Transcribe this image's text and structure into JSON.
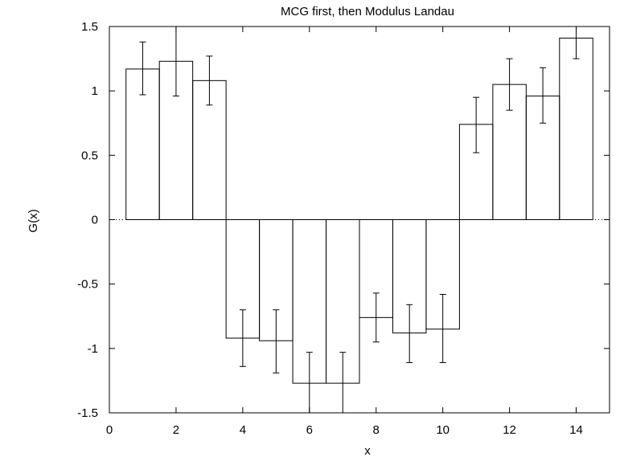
{
  "chart_data": {
    "type": "bar",
    "title": "MCG first, then Modulus Landau",
    "xlabel": "x",
    "ylabel": "G(x)",
    "xlim": [
      0,
      15
    ],
    "ylim": [
      -1.5,
      1.5
    ],
    "xticks": [
      0,
      2,
      4,
      6,
      8,
      10,
      12,
      14
    ],
    "yticks": [
      -1.5,
      -1,
      -0.5,
      0,
      0.5,
      1,
      1.5
    ],
    "xtick_labels": [
      "0",
      "2",
      "4",
      "6",
      "8",
      "10",
      "12",
      "14"
    ],
    "ytick_labels": [
      "-1.5",
      "-1",
      "-0.5",
      "0",
      "0.5",
      "1",
      "1.5"
    ],
    "bar_width": 1,
    "zero_line": "dotted",
    "x": [
      1,
      2,
      3,
      4,
      5,
      6,
      7,
      8,
      9,
      10,
      11,
      12,
      13,
      14
    ],
    "values": [
      1.17,
      1.23,
      1.08,
      -0.92,
      -0.94,
      -1.27,
      -1.27,
      -0.76,
      -0.88,
      -0.85,
      0.74,
      1.05,
      0.96,
      1.41
    ],
    "err_low": [
      0.97,
      0.96,
      0.89,
      -1.14,
      -1.19,
      -1.52,
      -1.52,
      -0.95,
      -1.11,
      -1.11,
      0.52,
      0.85,
      0.75,
      1.25
    ],
    "err_high": [
      1.38,
      1.5,
      1.27,
      -0.7,
      -0.7,
      -1.03,
      -1.03,
      -0.57,
      -0.66,
      -0.58,
      0.95,
      1.25,
      1.18,
      1.5
    ],
    "grid": false
  }
}
